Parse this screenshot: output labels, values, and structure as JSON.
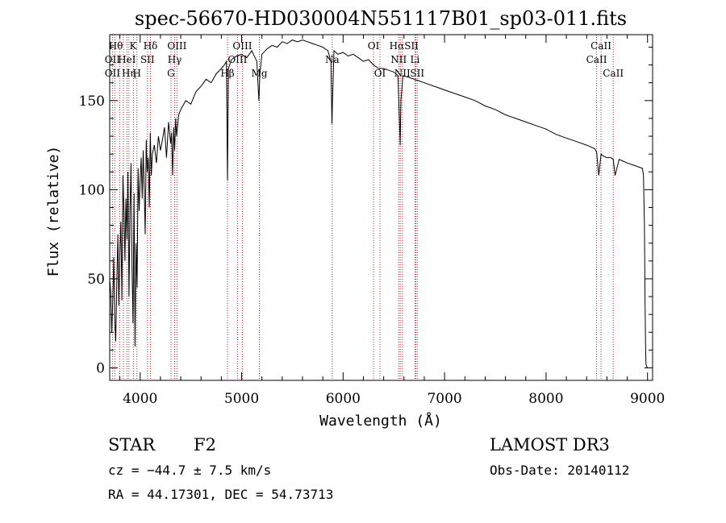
{
  "chart_data": {
    "type": "line",
    "title": "spec-56670-HD030004N551117B01_sp03-011.fits",
    "xlabel": "Wavelength (Å)",
    "ylabel": "Flux (relative)",
    "xlim": [
      3700,
      9050
    ],
    "ylim": [
      -7,
      187
    ],
    "xticks": [
      4000,
      5000,
      6000,
      7000,
      8000,
      9000
    ],
    "yticks": [
      0,
      50,
      100,
      150
    ],
    "series": [
      {
        "name": "spectrum",
        "x": [
          3700,
          3710,
          3720,
          3730,
          3740,
          3750,
          3760,
          3770,
          3780,
          3790,
          3800,
          3810,
          3820,
          3830,
          3840,
          3850,
          3860,
          3870,
          3880,
          3890,
          3900,
          3910,
          3920,
          3930,
          3940,
          3950,
          3960,
          3970,
          3980,
          3990,
          4000,
          4010,
          4020,
          4030,
          4040,
          4050,
          4060,
          4070,
          4080,
          4090,
          4100,
          4110,
          4120,
          4140,
          4160,
          4180,
          4200,
          4220,
          4240,
          4260,
          4280,
          4300,
          4310,
          4320,
          4330,
          4340,
          4350,
          4360,
          4380,
          4400,
          4450,
          4500,
          4550,
          4600,
          4650,
          4700,
          4750,
          4800,
          4830,
          4850,
          4861,
          4870,
          4900,
          4950,
          5000,
          5050,
          5100,
          5150,
          5170,
          5180,
          5200,
          5250,
          5300,
          5350,
          5400,
          5450,
          5500,
          5550,
          5600,
          5650,
          5700,
          5750,
          5800,
          5850,
          5880,
          5890,
          5896,
          5910,
          5950,
          6000,
          6050,
          6100,
          6150,
          6200,
          6250,
          6300,
          6350,
          6400,
          6450,
          6500,
          6540,
          6555,
          6563,
          6570,
          6590,
          6650,
          6700,
          6750,
          6800,
          6900,
          7000,
          7100,
          7200,
          7300,
          7400,
          7500,
          7600,
          7700,
          7800,
          7900,
          8000,
          8100,
          8200,
          8300,
          8400,
          8480,
          8498,
          8520,
          8542,
          8560,
          8600,
          8640,
          8662,
          8680,
          8720,
          8760,
          8800,
          8850,
          8900,
          8950,
          8960,
          8970,
          8975,
          8980,
          8985,
          8990,
          9000
        ],
        "y": [
          50,
          42,
          20,
          38,
          62,
          28,
          15,
          48,
          75,
          35,
          65,
          82,
          38,
          108,
          90,
          60,
          95,
          72,
          110,
          40,
          88,
          115,
          55,
          25,
          98,
          12,
          70,
          45,
          112,
          88,
          105,
          118,
          95,
          122,
          100,
          75,
          128,
          110,
          118,
          90,
          132,
          108,
          120,
          125,
          115,
          130,
          122,
          128,
          135,
          118,
          138,
          126,
          132,
          108,
          135,
          122,
          140,
          130,
          142,
          145,
          150,
          148,
          155,
          158,
          162,
          160,
          165,
          168,
          170,
          172,
          105,
          168,
          173,
          175,
          176,
          174,
          178,
          172,
          150,
          165,
          176,
          179,
          181,
          180,
          183,
          182,
          184,
          183,
          184,
          183,
          182,
          181,
          180,
          178,
          172,
          137,
          150,
          178,
          176,
          177,
          175,
          176,
          174,
          172,
          173,
          170,
          168,
          168,
          167,
          166,
          164,
          140,
          125,
          150,
          164,
          163,
          162,
          161,
          160,
          158,
          156,
          154,
          152,
          150,
          147,
          145,
          142,
          140,
          138,
          136,
          134,
          131,
          129,
          127,
          125,
          123,
          121,
          108,
          120,
          119,
          118,
          118,
          117,
          108,
          117,
          116,
          115,
          114,
          113,
          112,
          108,
          80,
          40,
          15,
          2,
          1,
          0
        ]
      }
    ],
    "lines": [
      {
        "wl": 3750,
        "label": "Hθ"
      },
      {
        "wl": 3727,
        "label": "OII"
      },
      {
        "wl": 3727,
        "label": "OII"
      },
      {
        "wl": 3798,
        "label": ""
      },
      {
        "wl": 3835,
        "label": ""
      },
      {
        "wl": 3870,
        "label": "HeI"
      },
      {
        "wl": 3889,
        "label": "Hη"
      },
      {
        "wl": 3934,
        "label": "K"
      },
      {
        "wl": 3968,
        "label": "H"
      },
      {
        "wl": 4072,
        "label": "SII"
      },
      {
        "wl": 4102,
        "label": "Hδ"
      },
      {
        "wl": 4340,
        "label": "Hγ"
      },
      {
        "wl": 4363,
        "label": "OIII"
      },
      {
        "wl": 4304,
        "label": "G"
      },
      {
        "wl": 4861,
        "label": "Hβ"
      },
      {
        "wl": 4959,
        "label": "OIII"
      },
      {
        "wl": 5007,
        "label": "OIII"
      },
      {
        "wl": 5175,
        "label": "Mg"
      },
      {
        "wl": 5893,
        "label": "Na"
      },
      {
        "wl": 6300,
        "label": "OI"
      },
      {
        "wl": 6363,
        "label": "OI"
      },
      {
        "wl": 6548,
        "label": "NII"
      },
      {
        "wl": 6563,
        "label": "Hα"
      },
      {
        "wl": 6584,
        "label": "NII"
      },
      {
        "wl": 6708,
        "label": "Li"
      },
      {
        "wl": 6716,
        "label": "SII"
      },
      {
        "wl": 6731,
        "label": "SII"
      },
      {
        "wl": 8498,
        "label": "CaII"
      },
      {
        "wl": 8542,
        "label": "CaII"
      },
      {
        "wl": 8662,
        "label": "CaII"
      }
    ],
    "line_label_rows": [
      {
        "text": "Hθ",
        "wl": 3760,
        "row": 1
      },
      {
        "text": "K",
        "wl": 3930,
        "row": 1
      },
      {
        "text": "Hδ",
        "wl": 4102,
        "row": 1
      },
      {
        "text": "OIII",
        "wl": 4363,
        "row": 1
      },
      {
        "text": "OIII",
        "wl": 5007,
        "row": 1
      },
      {
        "text": "OI",
        "wl": 6300,
        "row": 1
      },
      {
        "text": "HαSII",
        "wl": 6600,
        "row": 1
      },
      {
        "text": "CaII",
        "wl": 8542,
        "row": 1
      },
      {
        "text": "OII",
        "wl": 3727,
        "row": 2
      },
      {
        "text": "HeI",
        "wl": 3870,
        "row": 2
      },
      {
        "text": "SII",
        "wl": 4072,
        "row": 2
      },
      {
        "text": "Hγ",
        "wl": 4340,
        "row": 2
      },
      {
        "text": "OIII",
        "wl": 4959,
        "row": 2
      },
      {
        "text": "Na",
        "wl": 5893,
        "row": 2
      },
      {
        "text": "NII",
        "wl": 6548,
        "row": 2
      },
      {
        "text": "Li",
        "wl": 6708,
        "row": 2
      },
      {
        "text": "CaII",
        "wl": 8498,
        "row": 2
      },
      {
        "text": "OII",
        "wl": 3727,
        "row": 3
      },
      {
        "text": "Hη",
        "wl": 3889,
        "row": 3
      },
      {
        "text": "H",
        "wl": 3968,
        "row": 3
      },
      {
        "text": "G",
        "wl": 4304,
        "row": 3
      },
      {
        "text": "Hβ",
        "wl": 4861,
        "row": 3
      },
      {
        "text": "Mg",
        "wl": 5175,
        "row": 3
      },
      {
        "text": "OI",
        "wl": 6363,
        "row": 3
      },
      {
        "text": "NII",
        "wl": 6584,
        "row": 3
      },
      {
        "text": "SII",
        "wl": 6731,
        "row": 3
      },
      {
        "text": "CaII",
        "wl": 8662,
        "row": 3
      }
    ]
  },
  "info": {
    "class_label": "STAR",
    "subclass": "F2",
    "survey": "LAMOST DR3",
    "cz": "cz = −44.7 ± 7.5 km/s",
    "obs_date": "Obs-Date: 20140112",
    "radec": "RA =  44.17301, DEC =  54.73713"
  },
  "colors": {
    "spectrum": "#000000",
    "line_marker": "#b22222",
    "axis": "#000000"
  }
}
